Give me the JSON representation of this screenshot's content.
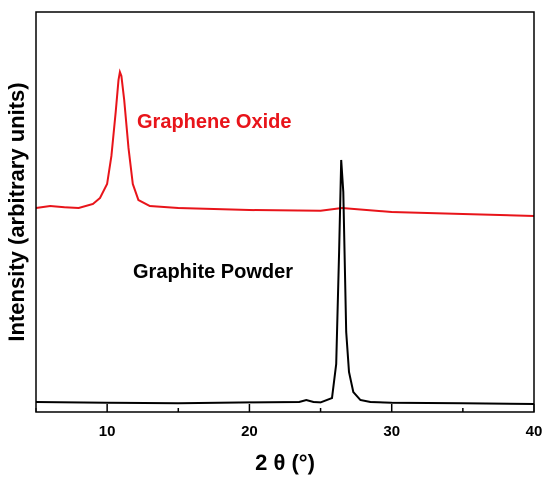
{
  "chart_data": {
    "type": "line",
    "title": "",
    "xlabel": "2 θ (°)",
    "ylabel": "Intensity (arbitrary units)",
    "xlim": [
      5,
      40
    ],
    "ylim": [
      0,
      1
    ],
    "x_ticks": [
      10,
      20,
      30,
      40
    ],
    "y_ticks_shown": false,
    "grid": false,
    "legend": "none",
    "series": [
      {
        "name": "Graphene Oxide",
        "color": "#e8141a",
        "x": [
          5,
          6,
          7,
          8,
          9,
          9.5,
          10,
          10.3,
          10.6,
          10.8,
          10.9,
          11.0,
          11.2,
          11.5,
          11.8,
          12.2,
          13,
          15,
          20,
          25,
          26.5,
          30,
          35,
          40
        ],
        "y": [
          0.51,
          0.515,
          0.512,
          0.51,
          0.52,
          0.535,
          0.57,
          0.64,
          0.75,
          0.83,
          0.85,
          0.84,
          0.78,
          0.66,
          0.57,
          0.53,
          0.515,
          0.51,
          0.505,
          0.503,
          0.51,
          0.5,
          0.495,
          0.49
        ]
      },
      {
        "name": "Graphite Powder",
        "color": "#000000",
        "x": [
          5,
          10,
          15,
          20,
          23.5,
          24,
          24.5,
          25,
          25.8,
          26.1,
          26.3,
          26.45,
          26.6,
          26.8,
          27.0,
          27.3,
          27.8,
          28.5,
          30,
          35,
          40
        ],
        "y": [
          0.025,
          0.023,
          0.022,
          0.024,
          0.025,
          0.03,
          0.025,
          0.024,
          0.035,
          0.12,
          0.4,
          0.63,
          0.55,
          0.2,
          0.1,
          0.05,
          0.03,
          0.025,
          0.023,
          0.022,
          0.02
        ]
      }
    ]
  }
}
